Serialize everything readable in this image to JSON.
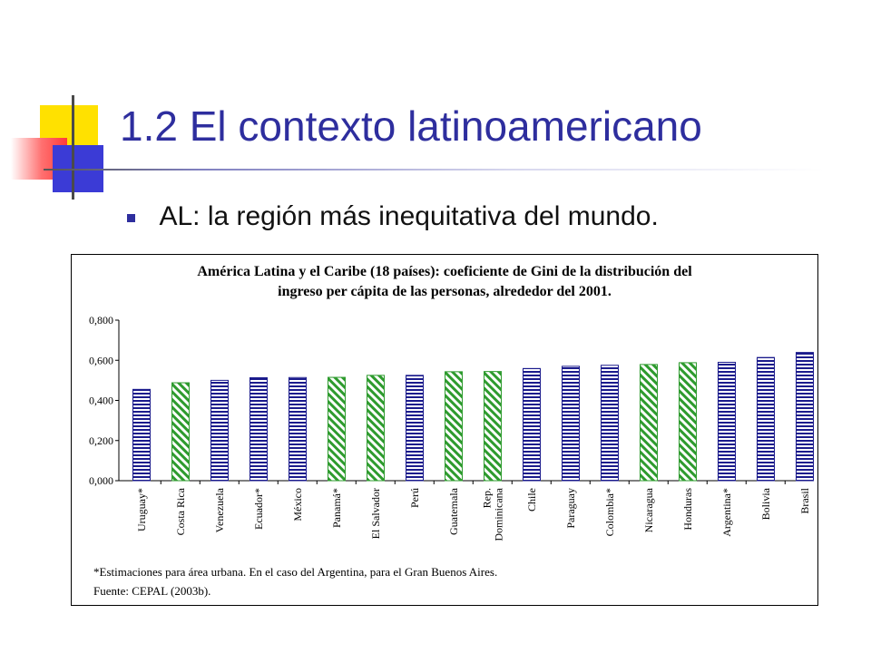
{
  "slide": {
    "title": "1.2 El contexto latinoamericano",
    "bullet": "AL: la región más inequitativa del mundo.",
    "accent_color": "#2e2e9e"
  },
  "chart_data": {
    "type": "bar",
    "title_lines": [
      "América Latina y el Caribe (18 países): coeficiente de Gini de la distribución del",
      "ingreso per cápita de las personas, alrededor del 2001."
    ],
    "xlabel": "",
    "ylabel": "",
    "ylim": [
      0,
      0.8
    ],
    "yticks": [
      "0,000",
      "0,200",
      "0,400",
      "0,600",
      "0,800"
    ],
    "ytick_values": [
      0,
      0.2,
      0.4,
      0.6,
      0.8
    ],
    "grid": false,
    "legend": "none",
    "categories": [
      [
        "Uruguay*"
      ],
      [
        "Costa Rica"
      ],
      [
        "Venezuela"
      ],
      [
        "Ecuador*"
      ],
      [
        "México"
      ],
      [
        "Panamá*"
      ],
      [
        "El Salvador"
      ],
      [
        "Perú"
      ],
      [
        "Guatemala"
      ],
      [
        "Rep.",
        "Dominicana"
      ],
      [
        "Chile"
      ],
      [
        "Paraguay"
      ],
      [
        "Colombia*"
      ],
      [
        "Nicaragua"
      ],
      [
        "Honduras"
      ],
      [
        "Argentina*"
      ],
      [
        "Bolivia"
      ],
      [
        "Brasil"
      ]
    ],
    "values": [
      0.455,
      0.488,
      0.5,
      0.513,
      0.514,
      0.515,
      0.525,
      0.525,
      0.543,
      0.544,
      0.559,
      0.57,
      0.575,
      0.579,
      0.588,
      0.59,
      0.614,
      0.639
    ],
    "bar_patterns": [
      "blue",
      "green",
      "blue",
      "blue",
      "blue",
      "green",
      "green",
      "blue",
      "green",
      "green",
      "blue",
      "blue",
      "blue",
      "green",
      "green",
      "blue",
      "blue",
      "blue"
    ],
    "colors": {
      "blue": "#1b1b8c",
      "green": "#2e9b2e"
    },
    "footnotes": [
      "*Estimaciones para área urbana. En el caso del Argentina, para el Gran Buenos Aires.",
      "Fuente: CEPAL (2003b)."
    ]
  }
}
